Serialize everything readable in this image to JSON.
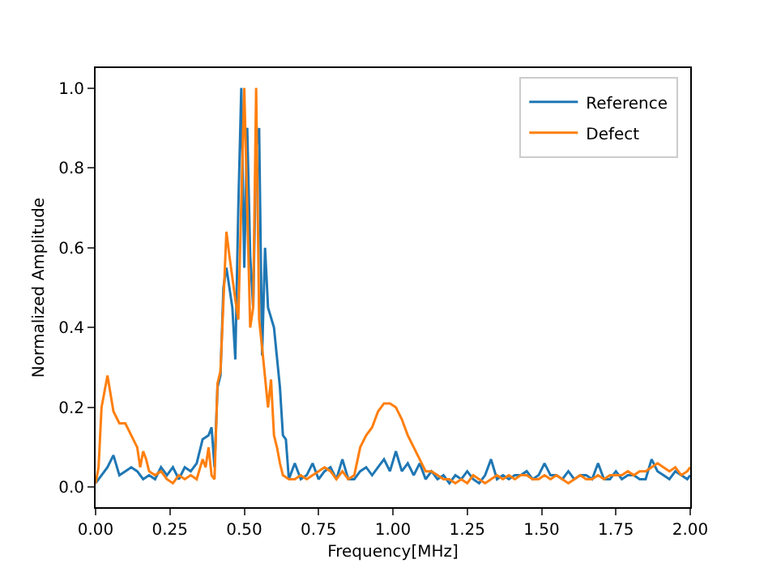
{
  "chart_data": {
    "type": "line",
    "xlabel": "Frequency[MHz]",
    "ylabel": "Normalized Amplitude",
    "xlim": [
      0,
      2
    ],
    "ylim": [
      -0.05,
      1.05
    ],
    "xticks": [
      {
        "value": 0,
        "label": "0.00"
      },
      {
        "value": 0.25,
        "label": "0.25"
      },
      {
        "value": 0.5,
        "label": "0.50"
      },
      {
        "value": 0.75,
        "label": "0.75"
      },
      {
        "value": 1,
        "label": "1.00"
      },
      {
        "value": 1.25,
        "label": "1.25"
      },
      {
        "value": 1.5,
        "label": "1.50"
      },
      {
        "value": 1.75,
        "label": "1.75"
      },
      {
        "value": 2,
        "label": "2.00"
      }
    ],
    "yticks": [
      {
        "value": 0,
        "label": "0.0"
      },
      {
        "value": 0.2,
        "label": "0.2"
      },
      {
        "value": 0.4,
        "label": "0.4"
      },
      {
        "value": 0.6,
        "label": "0.6"
      },
      {
        "value": 0.8,
        "label": "0.8"
      },
      {
        "value": 1,
        "label": "1.0"
      }
    ],
    "grid": false,
    "legend": "top right",
    "marker": "none",
    "line_style": "solid",
    "series": [
      {
        "name": "Reference",
        "color": "#1f77b4",
        "x": [
          0,
          0.02,
          0.04,
          0.06,
          0.08,
          0.1,
          0.12,
          0.14,
          0.16,
          0.18,
          0.2,
          0.22,
          0.24,
          0.26,
          0.28,
          0.3,
          0.32,
          0.34,
          0.36,
          0.38,
          0.39,
          0.4,
          0.41,
          0.42,
          0.43,
          0.44,
          0.46,
          0.47,
          0.48,
          0.49,
          0.5,
          0.51,
          0.52,
          0.53,
          0.54,
          0.55,
          0.56,
          0.57,
          0.58,
          0.6,
          0.62,
          0.63,
          0.64,
          0.65,
          0.67,
          0.69,
          0.71,
          0.73,
          0.75,
          0.77,
          0.79,
          0.81,
          0.83,
          0.85,
          0.87,
          0.89,
          0.91,
          0.93,
          0.95,
          0.97,
          0.99,
          1.01,
          1.03,
          1.05,
          1.07,
          1.09,
          1.11,
          1.13,
          1.15,
          1.17,
          1.19,
          1.21,
          1.23,
          1.25,
          1.27,
          1.29,
          1.31,
          1.33,
          1.35,
          1.37,
          1.39,
          1.41,
          1.43,
          1.45,
          1.47,
          1.49,
          1.51,
          1.53,
          1.55,
          1.57,
          1.59,
          1.61,
          1.63,
          1.65,
          1.67,
          1.69,
          1.71,
          1.73,
          1.75,
          1.77,
          1.79,
          1.81,
          1.83,
          1.85,
          1.87,
          1.89,
          1.91,
          1.93,
          1.95,
          1.97,
          1.99,
          2.0
        ],
        "values": [
          0.01,
          0.03,
          0.05,
          0.08,
          0.03,
          0.04,
          0.05,
          0.04,
          0.02,
          0.03,
          0.02,
          0.05,
          0.03,
          0.05,
          0.02,
          0.05,
          0.04,
          0.06,
          0.12,
          0.13,
          0.15,
          0.05,
          0.25,
          0.28,
          0.5,
          0.55,
          0.45,
          0.32,
          0.7,
          1.0,
          0.55,
          0.9,
          0.58,
          0.45,
          0.85,
          0.9,
          0.33,
          0.6,
          0.45,
          0.4,
          0.25,
          0.13,
          0.12,
          0.02,
          0.06,
          0.02,
          0.03,
          0.06,
          0.02,
          0.04,
          0.05,
          0.02,
          0.07,
          0.02,
          0.02,
          0.04,
          0.05,
          0.03,
          0.05,
          0.07,
          0.04,
          0.09,
          0.04,
          0.06,
          0.03,
          0.06,
          0.02,
          0.04,
          0.02,
          0.03,
          0.01,
          0.03,
          0.02,
          0.04,
          0.02,
          0.01,
          0.03,
          0.07,
          0.02,
          0.03,
          0.02,
          0.03,
          0.03,
          0.04,
          0.02,
          0.03,
          0.06,
          0.03,
          0.03,
          0.02,
          0.04,
          0.02,
          0.03,
          0.03,
          0.02,
          0.06,
          0.02,
          0.02,
          0.04,
          0.02,
          0.03,
          0.03,
          0.02,
          0.02,
          0.07,
          0.04,
          0.03,
          0.02,
          0.04,
          0.03,
          0.02,
          0.03
        ]
      },
      {
        "name": "Defect",
        "color": "#ff7f0e",
        "x": [
          0,
          0.01,
          0.02,
          0.04,
          0.06,
          0.08,
          0.1,
          0.12,
          0.14,
          0.15,
          0.16,
          0.17,
          0.18,
          0.2,
          0.22,
          0.24,
          0.26,
          0.28,
          0.3,
          0.32,
          0.34,
          0.36,
          0.37,
          0.38,
          0.39,
          0.4,
          0.41,
          0.42,
          0.44,
          0.45,
          0.47,
          0.48,
          0.5,
          0.51,
          0.52,
          0.53,
          0.54,
          0.55,
          0.56,
          0.58,
          0.59,
          0.6,
          0.61,
          0.62,
          0.63,
          0.65,
          0.67,
          0.69,
          0.71,
          0.73,
          0.75,
          0.77,
          0.79,
          0.81,
          0.83,
          0.85,
          0.87,
          0.89,
          0.91,
          0.93,
          0.95,
          0.97,
          0.99,
          1.01,
          1.03,
          1.05,
          1.07,
          1.09,
          1.11,
          1.13,
          1.15,
          1.17,
          1.19,
          1.21,
          1.23,
          1.25,
          1.27,
          1.29,
          1.31,
          1.33,
          1.35,
          1.37,
          1.39,
          1.41,
          1.43,
          1.45,
          1.47,
          1.49,
          1.51,
          1.53,
          1.55,
          1.57,
          1.59,
          1.61,
          1.63,
          1.65,
          1.67,
          1.69,
          1.71,
          1.73,
          1.75,
          1.77,
          1.79,
          1.81,
          1.83,
          1.85,
          1.87,
          1.89,
          1.91,
          1.93,
          1.95,
          1.97,
          1.99,
          2.0
        ],
        "values": [
          0.01,
          0.05,
          0.2,
          0.28,
          0.19,
          0.16,
          0.16,
          0.13,
          0.1,
          0.05,
          0.09,
          0.07,
          0.04,
          0.03,
          0.04,
          0.02,
          0.01,
          0.03,
          0.02,
          0.03,
          0.02,
          0.07,
          0.05,
          0.1,
          0.03,
          0.02,
          0.26,
          0.29,
          0.64,
          0.58,
          0.47,
          0.42,
          1.0,
          0.7,
          0.4,
          0.45,
          1.0,
          0.42,
          0.35,
          0.2,
          0.27,
          0.13,
          0.1,
          0.06,
          0.03,
          0.02,
          0.02,
          0.03,
          0.02,
          0.03,
          0.04,
          0.05,
          0.04,
          0.02,
          0.04,
          0.02,
          0.03,
          0.1,
          0.13,
          0.15,
          0.19,
          0.21,
          0.21,
          0.2,
          0.17,
          0.13,
          0.1,
          0.07,
          0.04,
          0.04,
          0.03,
          0.02,
          0.02,
          0.01,
          0.02,
          0.01,
          0.03,
          0.02,
          0.01,
          0.02,
          0.03,
          0.02,
          0.03,
          0.02,
          0.03,
          0.03,
          0.02,
          0.02,
          0.03,
          0.02,
          0.03,
          0.02,
          0.01,
          0.02,
          0.03,
          0.02,
          0.02,
          0.03,
          0.02,
          0.03,
          0.03,
          0.03,
          0.04,
          0.03,
          0.04,
          0.04,
          0.05,
          0.06,
          0.05,
          0.04,
          0.05,
          0.03,
          0.04,
          0.05
        ]
      }
    ]
  }
}
